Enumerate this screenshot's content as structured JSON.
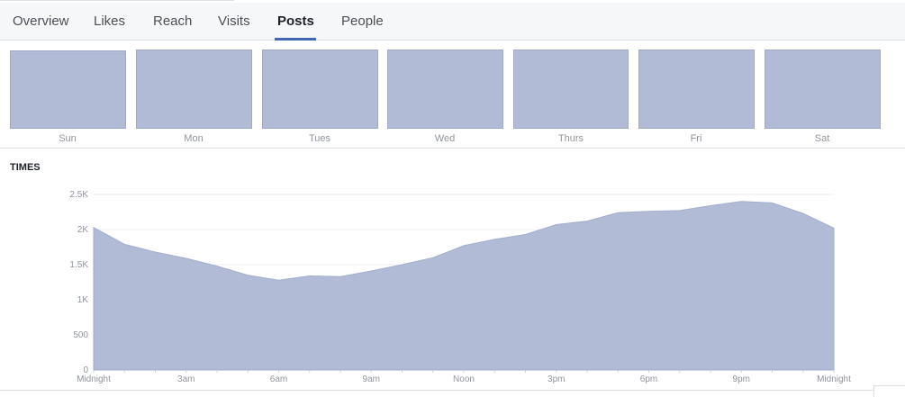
{
  "tabs": [
    {
      "label": "Overview",
      "active": false
    },
    {
      "label": "Likes",
      "active": false
    },
    {
      "label": "Reach",
      "active": false
    },
    {
      "label": "Visits",
      "active": false
    },
    {
      "label": "Posts",
      "active": true
    },
    {
      "label": "People",
      "active": false
    }
  ],
  "colors": {
    "accent": "#4267b2",
    "area": "#b1bbd6"
  },
  "days": {
    "labels": [
      "Sun",
      "Mon",
      "Tues",
      "Wed",
      "Thurs",
      "Fri",
      "Sat"
    ]
  },
  "times": {
    "title": "TIMES"
  },
  "chart_data": {
    "type": "area",
    "title": "TIMES",
    "xlabel": "",
    "ylabel": "",
    "x_ticks": [
      "Midnight",
      "3am",
      "6am",
      "9am",
      "Noon",
      "3pm",
      "6pm",
      "9pm",
      "Midnight"
    ],
    "y_ticks": [
      "0",
      "500",
      "1K",
      "1.5K",
      "2K",
      "2.5K"
    ],
    "ylim": [
      0,
      2500
    ],
    "grid": true,
    "x": [
      0,
      1,
      2,
      3,
      4,
      5,
      6,
      7,
      8,
      9,
      10,
      11,
      12,
      13,
      14,
      15,
      16,
      17,
      18,
      19,
      20,
      21,
      22,
      23,
      24
    ],
    "values": [
      2030,
      1790,
      1680,
      1590,
      1480,
      1350,
      1280,
      1340,
      1330,
      1410,
      1500,
      1600,
      1770,
      1860,
      1930,
      2070,
      2120,
      2240,
      2260,
      2270,
      2340,
      2400,
      2380,
      2230,
      2020
    ]
  }
}
